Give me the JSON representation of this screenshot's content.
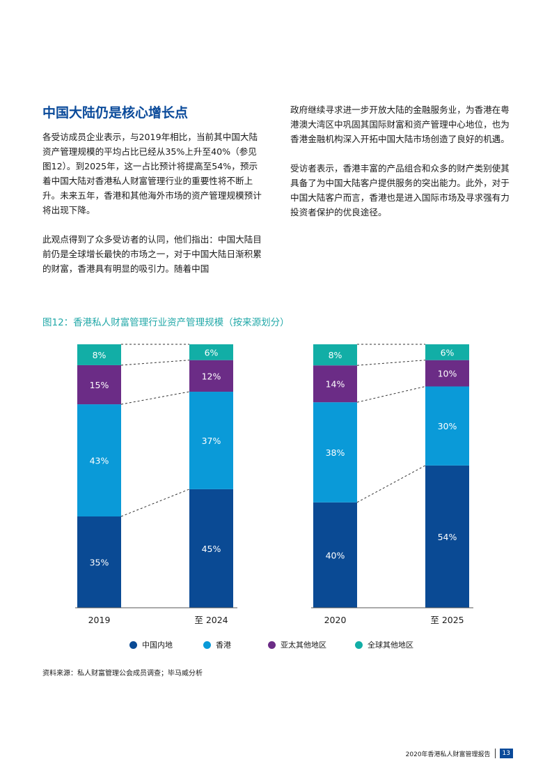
{
  "heading": "中国大陆仍是核心增长点",
  "left_paragraphs": [
    "各受访成员企业表示，与2019年相比，当前其中国大陆资产管理规模的平均占比已经从35%上升至40%（参见图12）。到2025年，这一占比预计将提高至54%，预示着中国大陆对香港私人财富管理行业的重要性将不断上升。未来五年，香港和其他海外市场的资产管理规模预计将出现下降。",
    "此观点得到了众多受访者的认同，他们指出：中国大陆目前仍是全球增长最快的市场之一，对于中国大陆日渐积累的财富，香港具有明显的吸引力。随着中国"
  ],
  "right_paragraphs": [
    "政府继续寻求进一步开放大陆的金融服务业，为香港在粤港澳大湾区中巩固其国际财富和资产管理中心地位，也为香港金融机构深入开拓中国大陆市场创造了良好的机遇。",
    "受访者表示，香港丰富的产品组合和众多的财产类别使其具备了为中国大陆客户提供服务的突出能力。此外，对于中国大陆客户而言，香港也是进入国际市场及寻求强有力投资者保护的优良途径。"
  ],
  "figure_title": "图12：香港私人财富管理行业资产管理规模（按来源划分）",
  "chart_data": [
    {
      "type": "bar",
      "stacked": true,
      "normalized_percent": true,
      "categories": [
        "2019",
        "至 2024"
      ],
      "series": [
        {
          "name": "中国内地",
          "values": [
            35,
            45
          ]
        },
        {
          "name": "香港",
          "values": [
            43,
            37
          ]
        },
        {
          "name": "亚太其他地区",
          "values": [
            15,
            12
          ]
        },
        {
          "name": "全球其他地区",
          "values": [
            8,
            6
          ]
        }
      ],
      "ylim": [
        0,
        100
      ],
      "connector_lines": "dashed"
    },
    {
      "type": "bar",
      "stacked": true,
      "normalized_percent": true,
      "categories": [
        "2020",
        "至 2025"
      ],
      "series": [
        {
          "name": "中国内地",
          "values": [
            40,
            54
          ]
        },
        {
          "name": "香港",
          "values": [
            38,
            30
          ]
        },
        {
          "name": "亚太其他地区",
          "values": [
            14,
            10
          ]
        },
        {
          "name": "全球其他地区",
          "values": [
            8,
            6
          ]
        }
      ],
      "ylim": [
        0,
        100
      ],
      "connector_lines": "dashed"
    }
  ],
  "colors": {
    "中国内地": "#0a4a94",
    "香港": "#0a9ad8",
    "亚太其他地区": "#6b2c86",
    "全球其他地区": "#12aea6"
  },
  "legend": [
    "中国内地",
    "香港",
    "亚太其他地区",
    "全球其他地区"
  ],
  "source": "资料来源：私人财富管理公会成员调查；毕马威分析",
  "footer": {
    "report_title": "2020年香港私人财富管理报告",
    "page_number": "13"
  }
}
